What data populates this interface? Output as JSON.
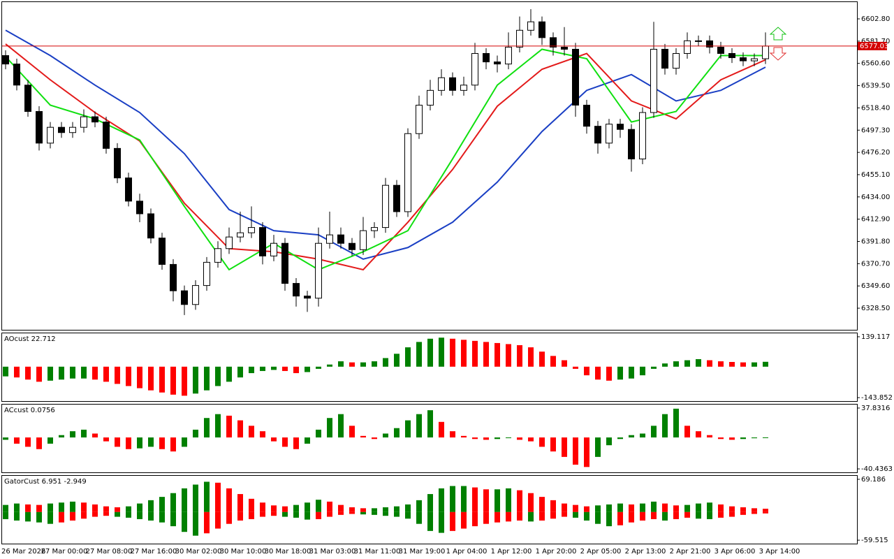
{
  "chart_data": [
    {
      "type": "candlestick",
      "categories": [
        "26 Mar 2026",
        null,
        null,
        null,
        "27 Mar 00:00",
        null,
        null,
        null,
        "27 Mar 08:00",
        null,
        null,
        null,
        "27 Mar 16:00",
        null,
        null,
        null,
        "30 Mar 02:00",
        null,
        null,
        null,
        "30 Mar 10:00",
        null,
        null,
        null,
        "30 Mar 18:00",
        null,
        null,
        null,
        "31 Mar 03:00",
        null,
        null,
        null,
        "31 Mar 11:00",
        null,
        null,
        null,
        "31 Mar 19:00",
        null,
        null,
        null,
        "1 Apr 04:00",
        null,
        null,
        null,
        "1 Apr 12:00",
        null,
        null,
        null,
        "1 Apr 20:00",
        null,
        null,
        null,
        "2 Apr 05:00",
        null,
        null,
        null,
        "2 Apr 13:00",
        null,
        null,
        null,
        "2 Apr 21:00",
        null,
        null,
        null,
        "3 Apr 06:00",
        null,
        null,
        null,
        "3 Apr 14:00"
      ],
      "open": [
        6568,
        6560,
        6540,
        6515,
        6485,
        6500,
        6495,
        6500,
        6510,
        6505,
        6480,
        6452,
        6430,
        6418,
        6395,
        6370,
        6345,
        6332,
        6350,
        6372,
        6385,
        6396,
        6400,
        6405,
        6378,
        6390,
        6352,
        6340,
        6338,
        6390,
        6398,
        6390,
        6384,
        6402,
        6405,
        6445,
        6420,
        6494,
        6521,
        6535,
        6547,
        6535,
        6540,
        6570,
        6562,
        6560,
        6576,
        6592,
        6600,
        6585,
        6576,
        6574,
        6521,
        6501,
        6485,
        6503,
        6498,
        6470,
        6514,
        6574,
        6556,
        6570,
        6582,
        6582,
        6576,
        6570,
        6566,
        6563,
        6565
      ],
      "high": [
        6573,
        6565,
        6545,
        6520,
        6505,
        6505,
        6505,
        6517,
        6515,
        6510,
        6485,
        6457,
        6437,
        6423,
        6400,
        6375,
        6350,
        6355,
        6377,
        6392,
        6405,
        6420,
        6425,
        6410,
        6398,
        6395,
        6357,
        6345,
        6405,
        6420,
        6405,
        6395,
        6415,
        6410,
        6452,
        6450,
        6499,
        6530,
        6545,
        6555,
        6552,
        6548,
        6580,
        6575,
        6568,
        6590,
        6605,
        6612,
        6605,
        6590,
        6595,
        6580,
        6526,
        6506,
        6508,
        6508,
        6503,
        6519,
        6600,
        6579,
        6575,
        6590,
        6587,
        6587,
        6581,
        6575,
        6571,
        6570,
        6590
      ],
      "low": [
        6555,
        6535,
        6510,
        6478,
        6480,
        6490,
        6490,
        6495,
        6500,
        6475,
        6447,
        6425,
        6410,
        6390,
        6365,
        6335,
        6322,
        6327,
        6345,
        6367,
        6380,
        6391,
        6395,
        6370,
        6373,
        6345,
        6330,
        6325,
        6330,
        6385,
        6385,
        6378,
        6379,
        6395,
        6400,
        6415,
        6415,
        6489,
        6516,
        6530,
        6530,
        6530,
        6535,
        6555,
        6552,
        6555,
        6571,
        6587,
        6578,
        6568,
        6568,
        6510,
        6494,
        6475,
        6480,
        6490,
        6458,
        6465,
        6509,
        6550,
        6550,
        6565,
        6577,
        6570,
        6565,
        6561,
        6558,
        6558,
        6560
      ],
      "close": [
        6560,
        6540,
        6515,
        6485,
        6500,
        6495,
        6500,
        6510,
        6505,
        6480,
        6452,
        6430,
        6418,
        6395,
        6370,
        6345,
        6332,
        6350,
        6372,
        6385,
        6396,
        6400,
        6405,
        6378,
        6390,
        6352,
        6340,
        6338,
        6390,
        6398,
        6390,
        6384,
        6402,
        6405,
        6445,
        6420,
        6494,
        6521,
        6535,
        6547,
        6535,
        6540,
        6570,
        6562,
        6560,
        6576,
        6592,
        6600,
        6585,
        6576,
        6574,
        6521,
        6501,
        6485,
        6503,
        6498,
        6470,
        6514,
        6574,
        6556,
        6570,
        6582,
        6582,
        6576,
        6570,
        6566,
        6563,
        6565,
        6577
      ],
      "lines": [
        {
          "color": "#1a3fc4",
          "x": [
            0,
            4,
            8,
            12,
            16,
            20,
            24,
            28,
            32,
            36,
            40,
            44,
            48,
            52,
            56,
            60,
            64,
            68
          ],
          "values": [
            6592,
            6568,
            6540,
            6514,
            6475,
            6422,
            6402,
            6398,
            6375,
            6386,
            6410,
            6448,
            6496,
            6535,
            6550,
            6525,
            6535,
            6557
          ]
        },
        {
          "color": "#e31a1a",
          "x": [
            0,
            4,
            8,
            12,
            16,
            20,
            24,
            28,
            32,
            36,
            40,
            44,
            48,
            52,
            56,
            60,
            64,
            68
          ],
          "values": [
            6579,
            6545,
            6514,
            6487,
            6428,
            6385,
            6382,
            6375,
            6365,
            6410,
            6460,
            6520,
            6555,
            6570,
            6525,
            6508,
            6545,
            6564
          ]
        },
        {
          "color": "#10e010",
          "x": [
            0,
            4,
            8,
            12,
            16,
            20,
            24,
            28,
            32,
            36,
            40,
            44,
            48,
            52,
            56,
            60,
            64,
            68
          ],
          "values": [
            6567,
            6521,
            6508,
            6488,
            6425,
            6365,
            6390,
            6365,
            6382,
            6402,
            6470,
            6540,
            6574,
            6565,
            6505,
            6515,
            6568,
            6568
          ]
        }
      ],
      "last_price": 6577.03,
      "last_price_color": "#d40000",
      "ylim": [
        6308,
        6618.7
      ],
      "yticks": [
        {
          "value": 6602.8,
          "label": "6602.80"
        },
        {
          "value": 6581.7,
          "label": "6581.70"
        },
        {
          "value": 6560.6,
          "label": "6560.60"
        },
        {
          "value": 6539.5,
          "label": "6539.50"
        },
        {
          "value": 6518.4,
          "label": "6518.40"
        },
        {
          "value": 6497.3,
          "label": "6497.30"
        },
        {
          "value": 6476.2,
          "label": "6476.20"
        },
        {
          "value": 6455.1,
          "label": "6455.10"
        },
        {
          "value": 6434,
          "label": "6434.00"
        },
        {
          "value": 6412.9,
          "label": "6412.90"
        },
        {
          "value": 6391.8,
          "label": "6391.80"
        },
        {
          "value": 6370.7,
          "label": "6370.70"
        },
        {
          "value": 6349.6,
          "label": "6349.60"
        },
        {
          "value": 6328.5,
          "label": "6328.50"
        }
      ]
    },
    {
      "type": "bar",
      "title": "AOcust 22.712",
      "rising_color": "#008000",
      "falling_color": "#ff0000",
      "series": [
        {
          "values": [
            -45,
            -50,
            -60,
            -70,
            -65,
            -60,
            -55,
            -55,
            -60,
            -70,
            -80,
            -90,
            -100,
            -110,
            -120,
            -130,
            -135,
            -125,
            -110,
            -90,
            -70,
            -50,
            -30,
            -20,
            -15,
            -20,
            -30,
            -25,
            -10,
            10,
            25,
            20,
            20,
            25,
            40,
            60,
            90,
            115,
            130,
            135,
            130,
            125,
            120,
            115,
            110,
            105,
            100,
            90,
            70,
            50,
            30,
            -10,
            -40,
            -60,
            -65,
            -60,
            -55,
            -40,
            -10,
            15,
            25,
            30,
            35,
            30,
            25,
            22,
            20,
            20,
            22.712
          ]
        }
      ],
      "ylim": [
        -159.9,
        155.2
      ],
      "yticks": [
        139.117,
        -143.852
      ]
    },
    {
      "type": "bar",
      "title": "ACcust 0.0756",
      "rising_color": "#008000",
      "falling_color": "#ff0000",
      "series": [
        {
          "values": [
            -3,
            -8,
            -12,
            -15,
            -8,
            3,
            8,
            10,
            5,
            -5,
            -12,
            -15,
            -14,
            -12,
            -15,
            -18,
            -12,
            10,
            25,
            30,
            28,
            22,
            15,
            8,
            -5,
            -12,
            -15,
            -8,
            10,
            25,
            30,
            15,
            2,
            -2,
            5,
            12,
            22,
            30,
            35,
            20,
            8,
            2,
            -2,
            -3,
            -2,
            0,
            -3,
            -5,
            -12,
            -18,
            -25,
            -35,
            -38,
            -25,
            -10,
            -2,
            3,
            5,
            15,
            30,
            37,
            15,
            8,
            3,
            -2,
            -3,
            -2,
            -1,
            0.0756
          ]
        }
      ],
      "ylim": [
        -44.88,
        42.28
      ],
      "yticks": [
        37.8316,
        -40.4363
      ]
    },
    {
      "type": "gator",
      "title": "GatorCust 6.951 -2.949",
      "rising_color": "#008000",
      "falling_color": "#ff0000",
      "series": [
        {
          "values": [
            15,
            18,
            16,
            15,
            18,
            20,
            22,
            20,
            16,
            12,
            10,
            12,
            18,
            25,
            32,
            40,
            50,
            58,
            64,
            62,
            50,
            38,
            28,
            20,
            14,
            12,
            15,
            20,
            26,
            22,
            15,
            10,
            8,
            8,
            10,
            12,
            16,
            25,
            38,
            50,
            55,
            55,
            52,
            48,
            48,
            50,
            46,
            40,
            32,
            25,
            18,
            15,
            12,
            14,
            16,
            18,
            16,
            18,
            22,
            18,
            14,
            15,
            18,
            20,
            16,
            12,
            10,
            8,
            6.951
          ]
        },
        {
          "values": [
            -15,
            -18,
            -20,
            -22,
            -25,
            -22,
            -18,
            -14,
            -10,
            -8,
            -10,
            -12,
            -15,
            -18,
            -22,
            -30,
            -42,
            -50,
            -45,
            -35,
            -25,
            -18,
            -15,
            -10,
            -8,
            -10,
            -12,
            -16,
            -15,
            -10,
            -6,
            -4,
            -5,
            -6,
            -8,
            -10,
            -14,
            -25,
            -40,
            -44,
            -40,
            -35,
            -30,
            -25,
            -22,
            -20,
            -18,
            -20,
            -18,
            -14,
            -10,
            -12,
            -18,
            -25,
            -30,
            -28,
            -22,
            -18,
            -15,
            -18,
            -15,
            -12,
            -14,
            -15,
            -12,
            -10,
            -6,
            -4,
            -2.949
          ]
        }
      ],
      "ylim": [
        -66.8,
        76.5
      ],
      "yticks": [
        69.186,
        -59.515
      ]
    }
  ]
}
